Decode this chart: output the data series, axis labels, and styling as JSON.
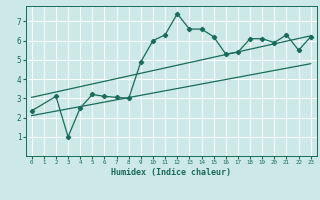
{
  "title": "",
  "xlabel": "Humidex (Indice chaleur)",
  "xlim": [
    -0.5,
    23.5
  ],
  "ylim": [
    0,
    7.8
  ],
  "xticks": [
    0,
    1,
    2,
    3,
    4,
    5,
    6,
    7,
    8,
    9,
    10,
    11,
    12,
    13,
    14,
    15,
    16,
    17,
    18,
    19,
    20,
    21,
    22,
    23
  ],
  "yticks": [
    1,
    2,
    3,
    4,
    5,
    6,
    7
  ],
  "bg_color": "#cce8e8",
  "grid_color": "#ffffff",
  "line_color": "#1a6b5a",
  "scatter_x": [
    0,
    2,
    3,
    4,
    5,
    6,
    7,
    8,
    9,
    10,
    11,
    12,
    13,
    14,
    15,
    16,
    17,
    18,
    19,
    20,
    21,
    22,
    23
  ],
  "scatter_y": [
    2.35,
    3.1,
    1.0,
    2.5,
    3.2,
    3.1,
    3.05,
    3.0,
    4.9,
    6.0,
    6.3,
    7.4,
    6.6,
    6.6,
    6.2,
    5.3,
    5.4,
    6.1,
    6.1,
    5.9,
    6.3,
    5.5,
    6.2
  ],
  "line1_x": [
    0,
    23
  ],
  "line1_y": [
    2.1,
    4.8
  ],
  "line2_x": [
    0,
    23
  ],
  "line2_y": [
    3.05,
    6.25
  ],
  "figsize": [
    3.2,
    2.0
  ],
  "dpi": 100
}
